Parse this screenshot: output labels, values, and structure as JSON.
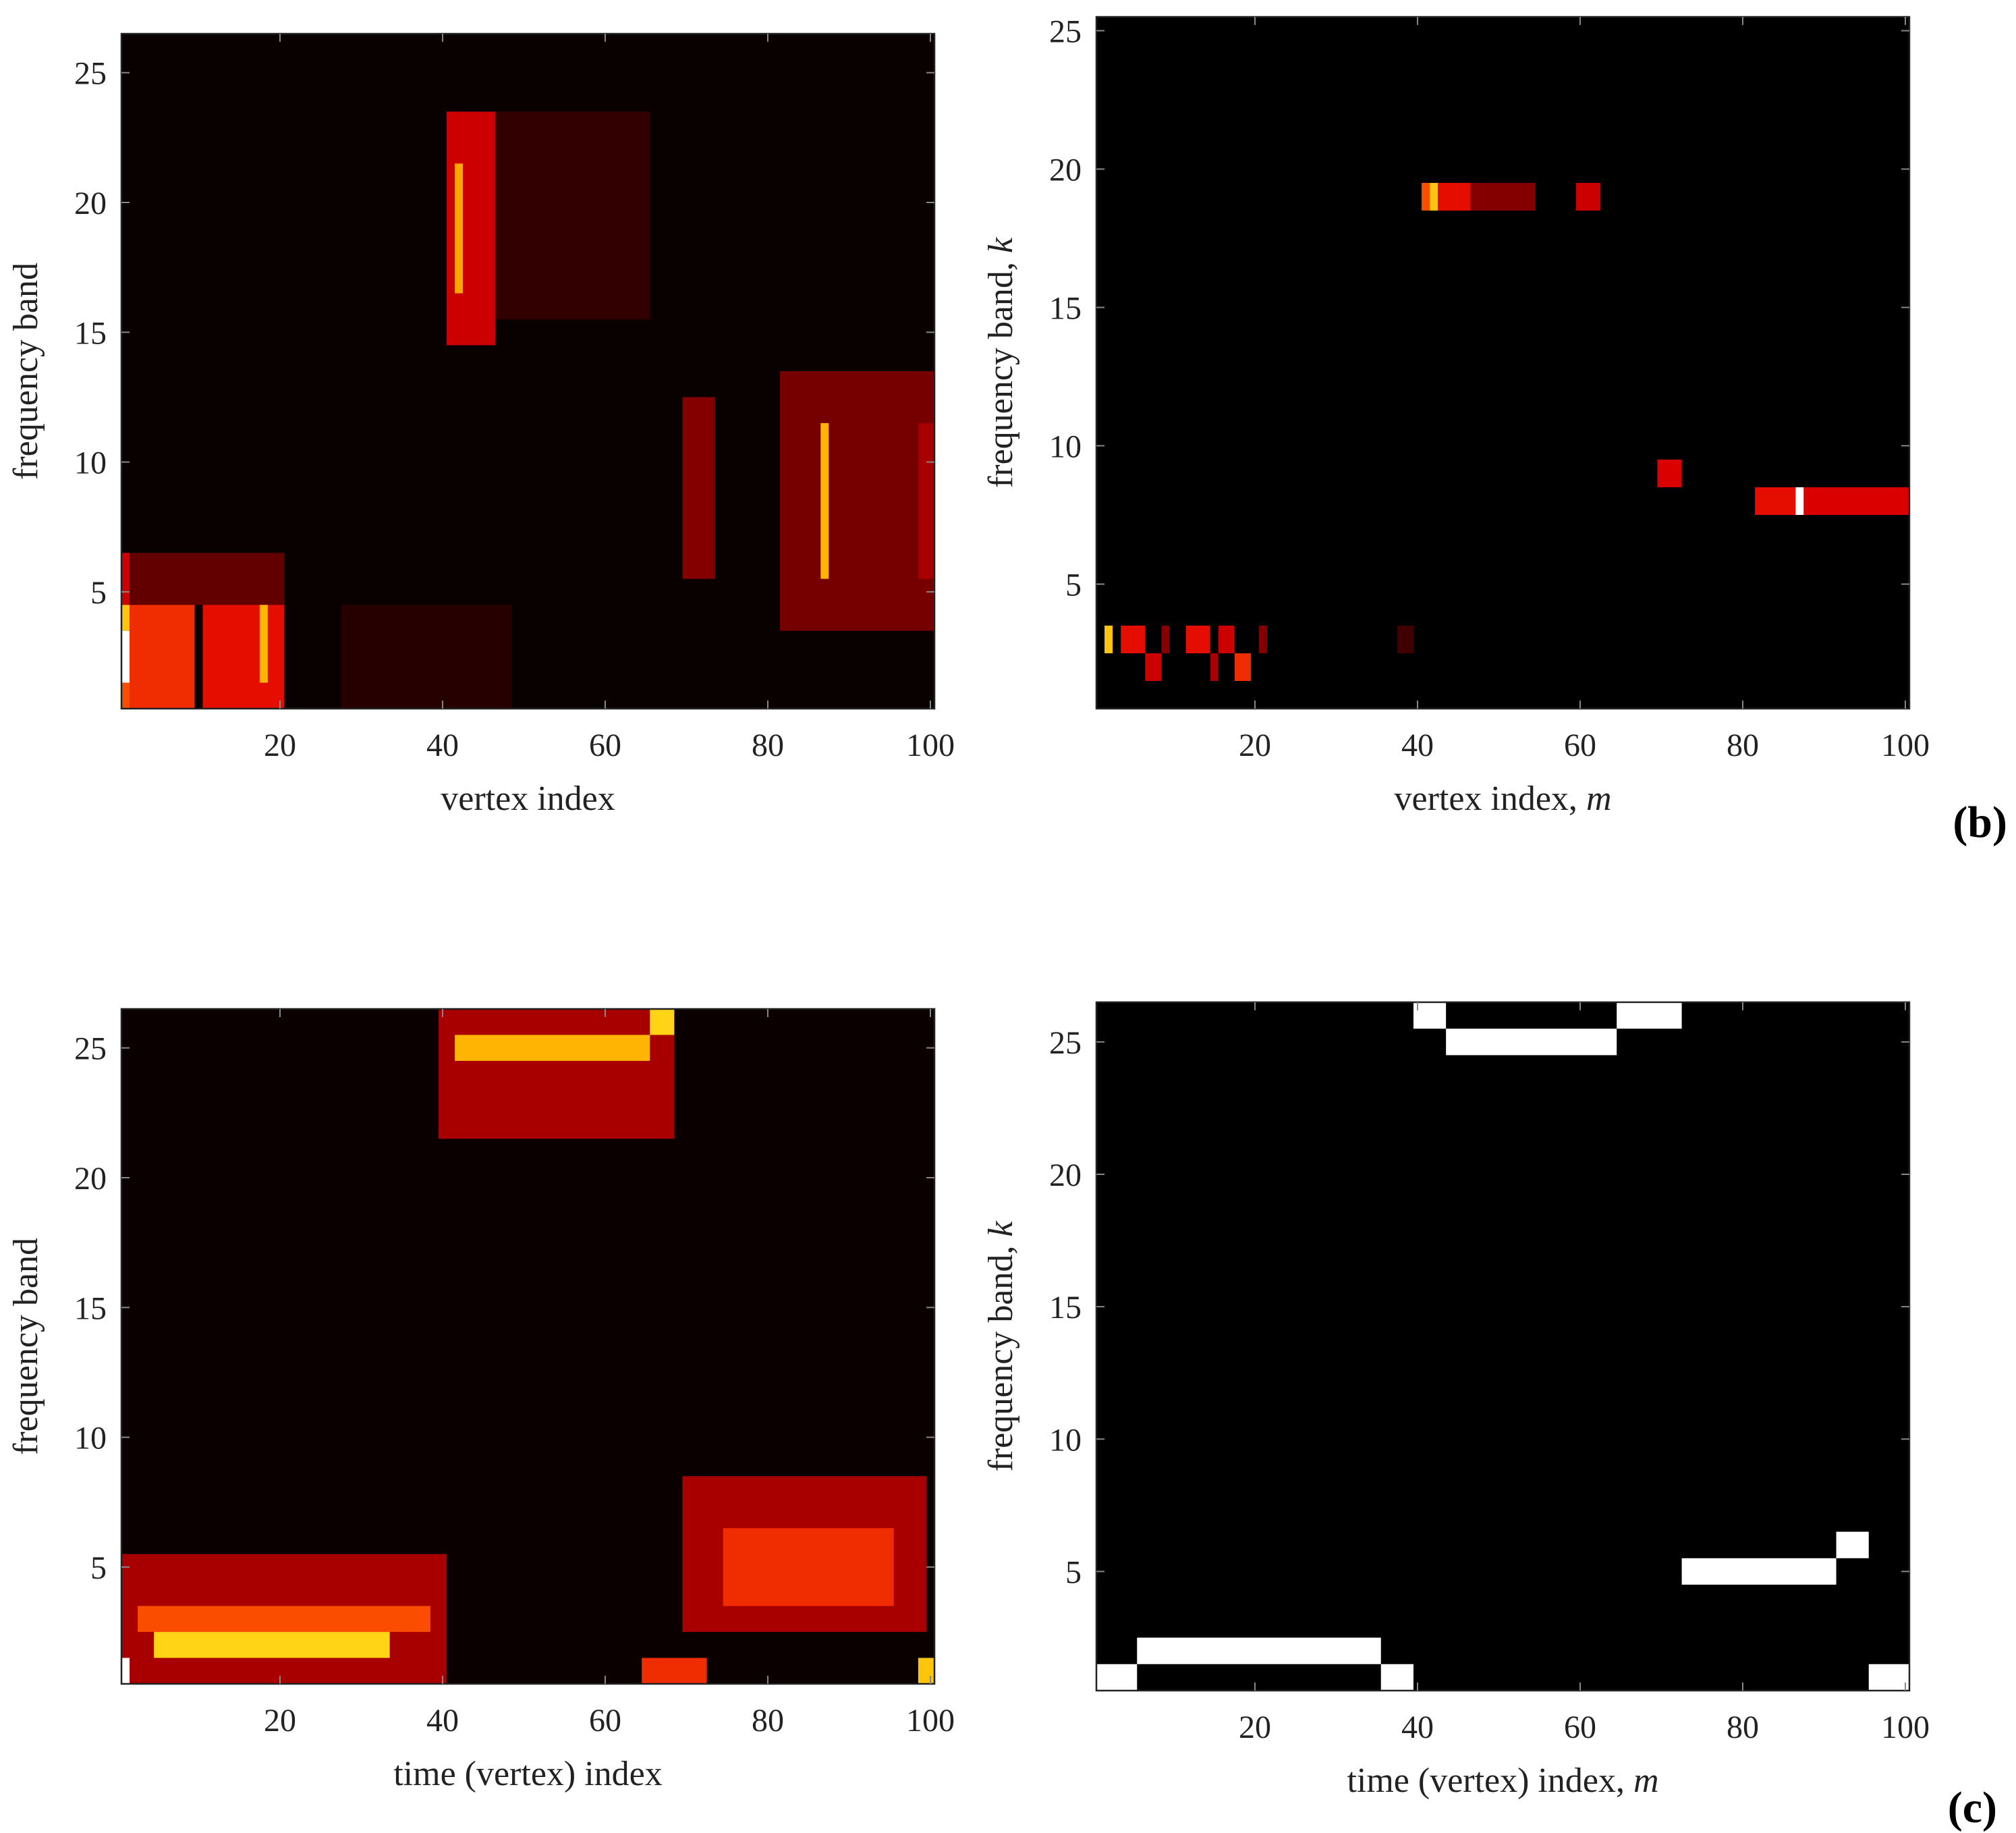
{
  "colormap": {
    "name": "hot",
    "stops": [
      "#000000",
      "#1a0000",
      "#7a0000",
      "#e00000",
      "#ff5a00",
      "#ffb000",
      "#ffff30",
      "#ffffff"
    ]
  },
  "panels": [
    {
      "id": "a",
      "panel_letter": "",
      "xlabel": "vertex index",
      "xlabel_var": "",
      "ylabel": "frequency band",
      "ylabel_var": ""
    },
    {
      "id": "b",
      "panel_letter": "(b)",
      "xlabel": "vertex index, ",
      "xlabel_var": "m",
      "ylabel": "frequency band, ",
      "ylabel_var": "k"
    },
    {
      "id": "c",
      "panel_letter": "",
      "xlabel": "time (vertex) index",
      "xlabel_var": "",
      "ylabel": "frequency band",
      "ylabel_var": ""
    },
    {
      "id": "d",
      "panel_letter": "(c)",
      "xlabel": "time (vertex) index, ",
      "xlabel_var": "m",
      "ylabel": "frequency band, ",
      "ylabel_var": "k"
    }
  ],
  "chart_data": [
    {
      "type": "heatmap",
      "xlabel": "vertex index",
      "ylabel": "frequency band",
      "xlim": [
        0.5,
        100.5
      ],
      "ylim": [
        0.5,
        26.5
      ],
      "xticks": [
        20,
        40,
        60,
        80,
        100
      ],
      "yticks": [
        5,
        10,
        15,
        20,
        25
      ],
      "background": 0.05,
      "regions": [
        {
          "x": [
            1,
            1
          ],
          "y": [
            2,
            3
          ],
          "value": 1.0
        },
        {
          "x": [
            1,
            1
          ],
          "y": [
            4,
            4
          ],
          "value": 0.75
        },
        {
          "x": [
            1,
            1
          ],
          "y": [
            1,
            1
          ],
          "value": 0.55
        },
        {
          "x": [
            1,
            1
          ],
          "y": [
            5,
            6
          ],
          "value": 0.4
        },
        {
          "x": [
            2,
            9
          ],
          "y": [
            1,
            4
          ],
          "value": 0.5
        },
        {
          "x": [
            11,
            20
          ],
          "y": [
            1,
            4
          ],
          "value": 0.45
        },
        {
          "x": [
            18,
            18
          ],
          "y": [
            2,
            4
          ],
          "value": 0.72
        },
        {
          "x": [
            2,
            20
          ],
          "y": [
            5,
            6
          ],
          "value": 0.25
        },
        {
          "x": [
            28,
            48
          ],
          "y": [
            1,
            4
          ],
          "value": 0.16
        },
        {
          "x": [
            41,
            46
          ],
          "y": [
            15,
            23
          ],
          "value": 0.4
        },
        {
          "x": [
            42,
            42
          ],
          "y": [
            17,
            21
          ],
          "value": 0.7
        },
        {
          "x": [
            47,
            65
          ],
          "y": [
            16,
            23
          ],
          "value": 0.18
        },
        {
          "x": [
            70,
            73
          ],
          "y": [
            6,
            12
          ],
          "value": 0.3
        },
        {
          "x": [
            82,
            100
          ],
          "y": [
            4,
            13
          ],
          "value": 0.28
        },
        {
          "x": [
            87,
            87
          ],
          "y": [
            6,
            11
          ],
          "value": 0.72
        },
        {
          "x": [
            99,
            100
          ],
          "y": [
            6,
            11
          ],
          "value": 0.35
        }
      ]
    },
    {
      "type": "heatmap",
      "xlabel": "vertex index, m",
      "ylabel": "frequency band, k",
      "xlim": [
        0.5,
        100.5
      ],
      "ylim": [
        0.5,
        25.5
      ],
      "xticks": [
        20,
        40,
        60,
        80,
        100
      ],
      "yticks": [
        5,
        10,
        15,
        20,
        25
      ],
      "background": 0.0,
      "regions": [
        {
          "x": [
            2,
            2
          ],
          "y": [
            3,
            3
          ],
          "value": 0.75
        },
        {
          "x": [
            4,
            6
          ],
          "y": [
            3,
            3
          ],
          "value": 0.45
        },
        {
          "x": [
            7,
            8
          ],
          "y": [
            2,
            2
          ],
          "value": 0.4
        },
        {
          "x": [
            9,
            9
          ],
          "y": [
            3,
            3
          ],
          "value": 0.3
        },
        {
          "x": [
            12,
            14
          ],
          "y": [
            3,
            3
          ],
          "value": 0.45
        },
        {
          "x": [
            15,
            15
          ],
          "y": [
            2,
            2
          ],
          "value": 0.35
        },
        {
          "x": [
            16,
            17
          ],
          "y": [
            3,
            3
          ],
          "value": 0.4
        },
        {
          "x": [
            18,
            19
          ],
          "y": [
            2,
            2
          ],
          "value": 0.5
        },
        {
          "x": [
            21,
            21
          ],
          "y": [
            3,
            3
          ],
          "value": 0.3
        },
        {
          "x": [
            38,
            39
          ],
          "y": [
            3,
            3
          ],
          "value": 0.2
        },
        {
          "x": [
            41,
            41
          ],
          "y": [
            19,
            19
          ],
          "value": 0.55
        },
        {
          "x": [
            42,
            42
          ],
          "y": [
            19,
            19
          ],
          "value": 0.75
        },
        {
          "x": [
            43,
            46
          ],
          "y": [
            19,
            19
          ],
          "value": 0.45
        },
        {
          "x": [
            47,
            54
          ],
          "y": [
            19,
            19
          ],
          "value": 0.3
        },
        {
          "x": [
            60,
            62
          ],
          "y": [
            19,
            19
          ],
          "value": 0.4
        },
        {
          "x": [
            70,
            72
          ],
          "y": [
            9,
            9
          ],
          "value": 0.42
        },
        {
          "x": [
            82,
            86
          ],
          "y": [
            8,
            8
          ],
          "value": 0.45
        },
        {
          "x": [
            87,
            87
          ],
          "y": [
            8,
            8
          ],
          "value": 1.0
        },
        {
          "x": [
            88,
            100
          ],
          "y": [
            8,
            8
          ],
          "value": 0.42
        }
      ]
    },
    {
      "type": "heatmap",
      "xlabel": "time (vertex) index",
      "ylabel": "frequency band",
      "xlim": [
        0.5,
        100.5
      ],
      "ylim": [
        0.5,
        26.5
      ],
      "xticks": [
        20,
        40,
        60,
        80,
        100
      ],
      "yticks": [
        5,
        10,
        15,
        20,
        25
      ],
      "background": 0.06,
      "regions": [
        {
          "x": [
            1,
            40
          ],
          "y": [
            1,
            5
          ],
          "value": 0.35
        },
        {
          "x": [
            5,
            33
          ],
          "y": [
            2,
            2
          ],
          "value": 0.78
        },
        {
          "x": [
            3,
            38
          ],
          "y": [
            3,
            3
          ],
          "value": 0.55
        },
        {
          "x": [
            1,
            1
          ],
          "y": [
            1,
            1
          ],
          "value": 1.0
        },
        {
          "x": [
            40,
            68
          ],
          "y": [
            22,
            26
          ],
          "value": 0.35
        },
        {
          "x": [
            42,
            65
          ],
          "y": [
            25,
            25
          ],
          "value": 0.72
        },
        {
          "x": [
            66,
            68
          ],
          "y": [
            26,
            26
          ],
          "value": 0.78
        },
        {
          "x": [
            70,
            99
          ],
          "y": [
            3,
            8
          ],
          "value": 0.35
        },
        {
          "x": [
            75,
            95
          ],
          "y": [
            4,
            6
          ],
          "value": 0.5
        },
        {
          "x": [
            99,
            100
          ],
          "y": [
            1,
            1
          ],
          "value": 0.75
        },
        {
          "x": [
            65,
            72
          ],
          "y": [
            1,
            1
          ],
          "value": 0.5
        }
      ]
    },
    {
      "type": "heatmap",
      "xlabel": "time (vertex) index, m",
      "ylabel": "frequency band, k",
      "xlim": [
        0.5,
        100.5
      ],
      "ylim": [
        0.5,
        26.5
      ],
      "xticks": [
        20,
        40,
        60,
        80,
        100
      ],
      "yticks": [
        5,
        10,
        15,
        20,
        25
      ],
      "background": 0.0,
      "regions": [
        {
          "x": [
            1,
            5
          ],
          "y": [
            1,
            1
          ],
          "value": 1.0
        },
        {
          "x": [
            6,
            35
          ],
          "y": [
            2,
            2
          ],
          "value": 1.0
        },
        {
          "x": [
            36,
            39
          ],
          "y": [
            1,
            1
          ],
          "value": 1.0
        },
        {
          "x": [
            40,
            43
          ],
          "y": [
            26,
            26
          ],
          "value": 1.0
        },
        {
          "x": [
            44,
            64
          ],
          "y": [
            25,
            25
          ],
          "value": 1.0
        },
        {
          "x": [
            65,
            72
          ],
          "y": [
            26,
            26
          ],
          "value": 1.0
        },
        {
          "x": [
            73,
            91
          ],
          "y": [
            5,
            5
          ],
          "value": 1.0
        },
        {
          "x": [
            92,
            95
          ],
          "y": [
            6,
            6
          ],
          "value": 1.0
        },
        {
          "x": [
            96,
            100
          ],
          "y": [
            1,
            1
          ],
          "value": 1.0
        }
      ]
    }
  ]
}
